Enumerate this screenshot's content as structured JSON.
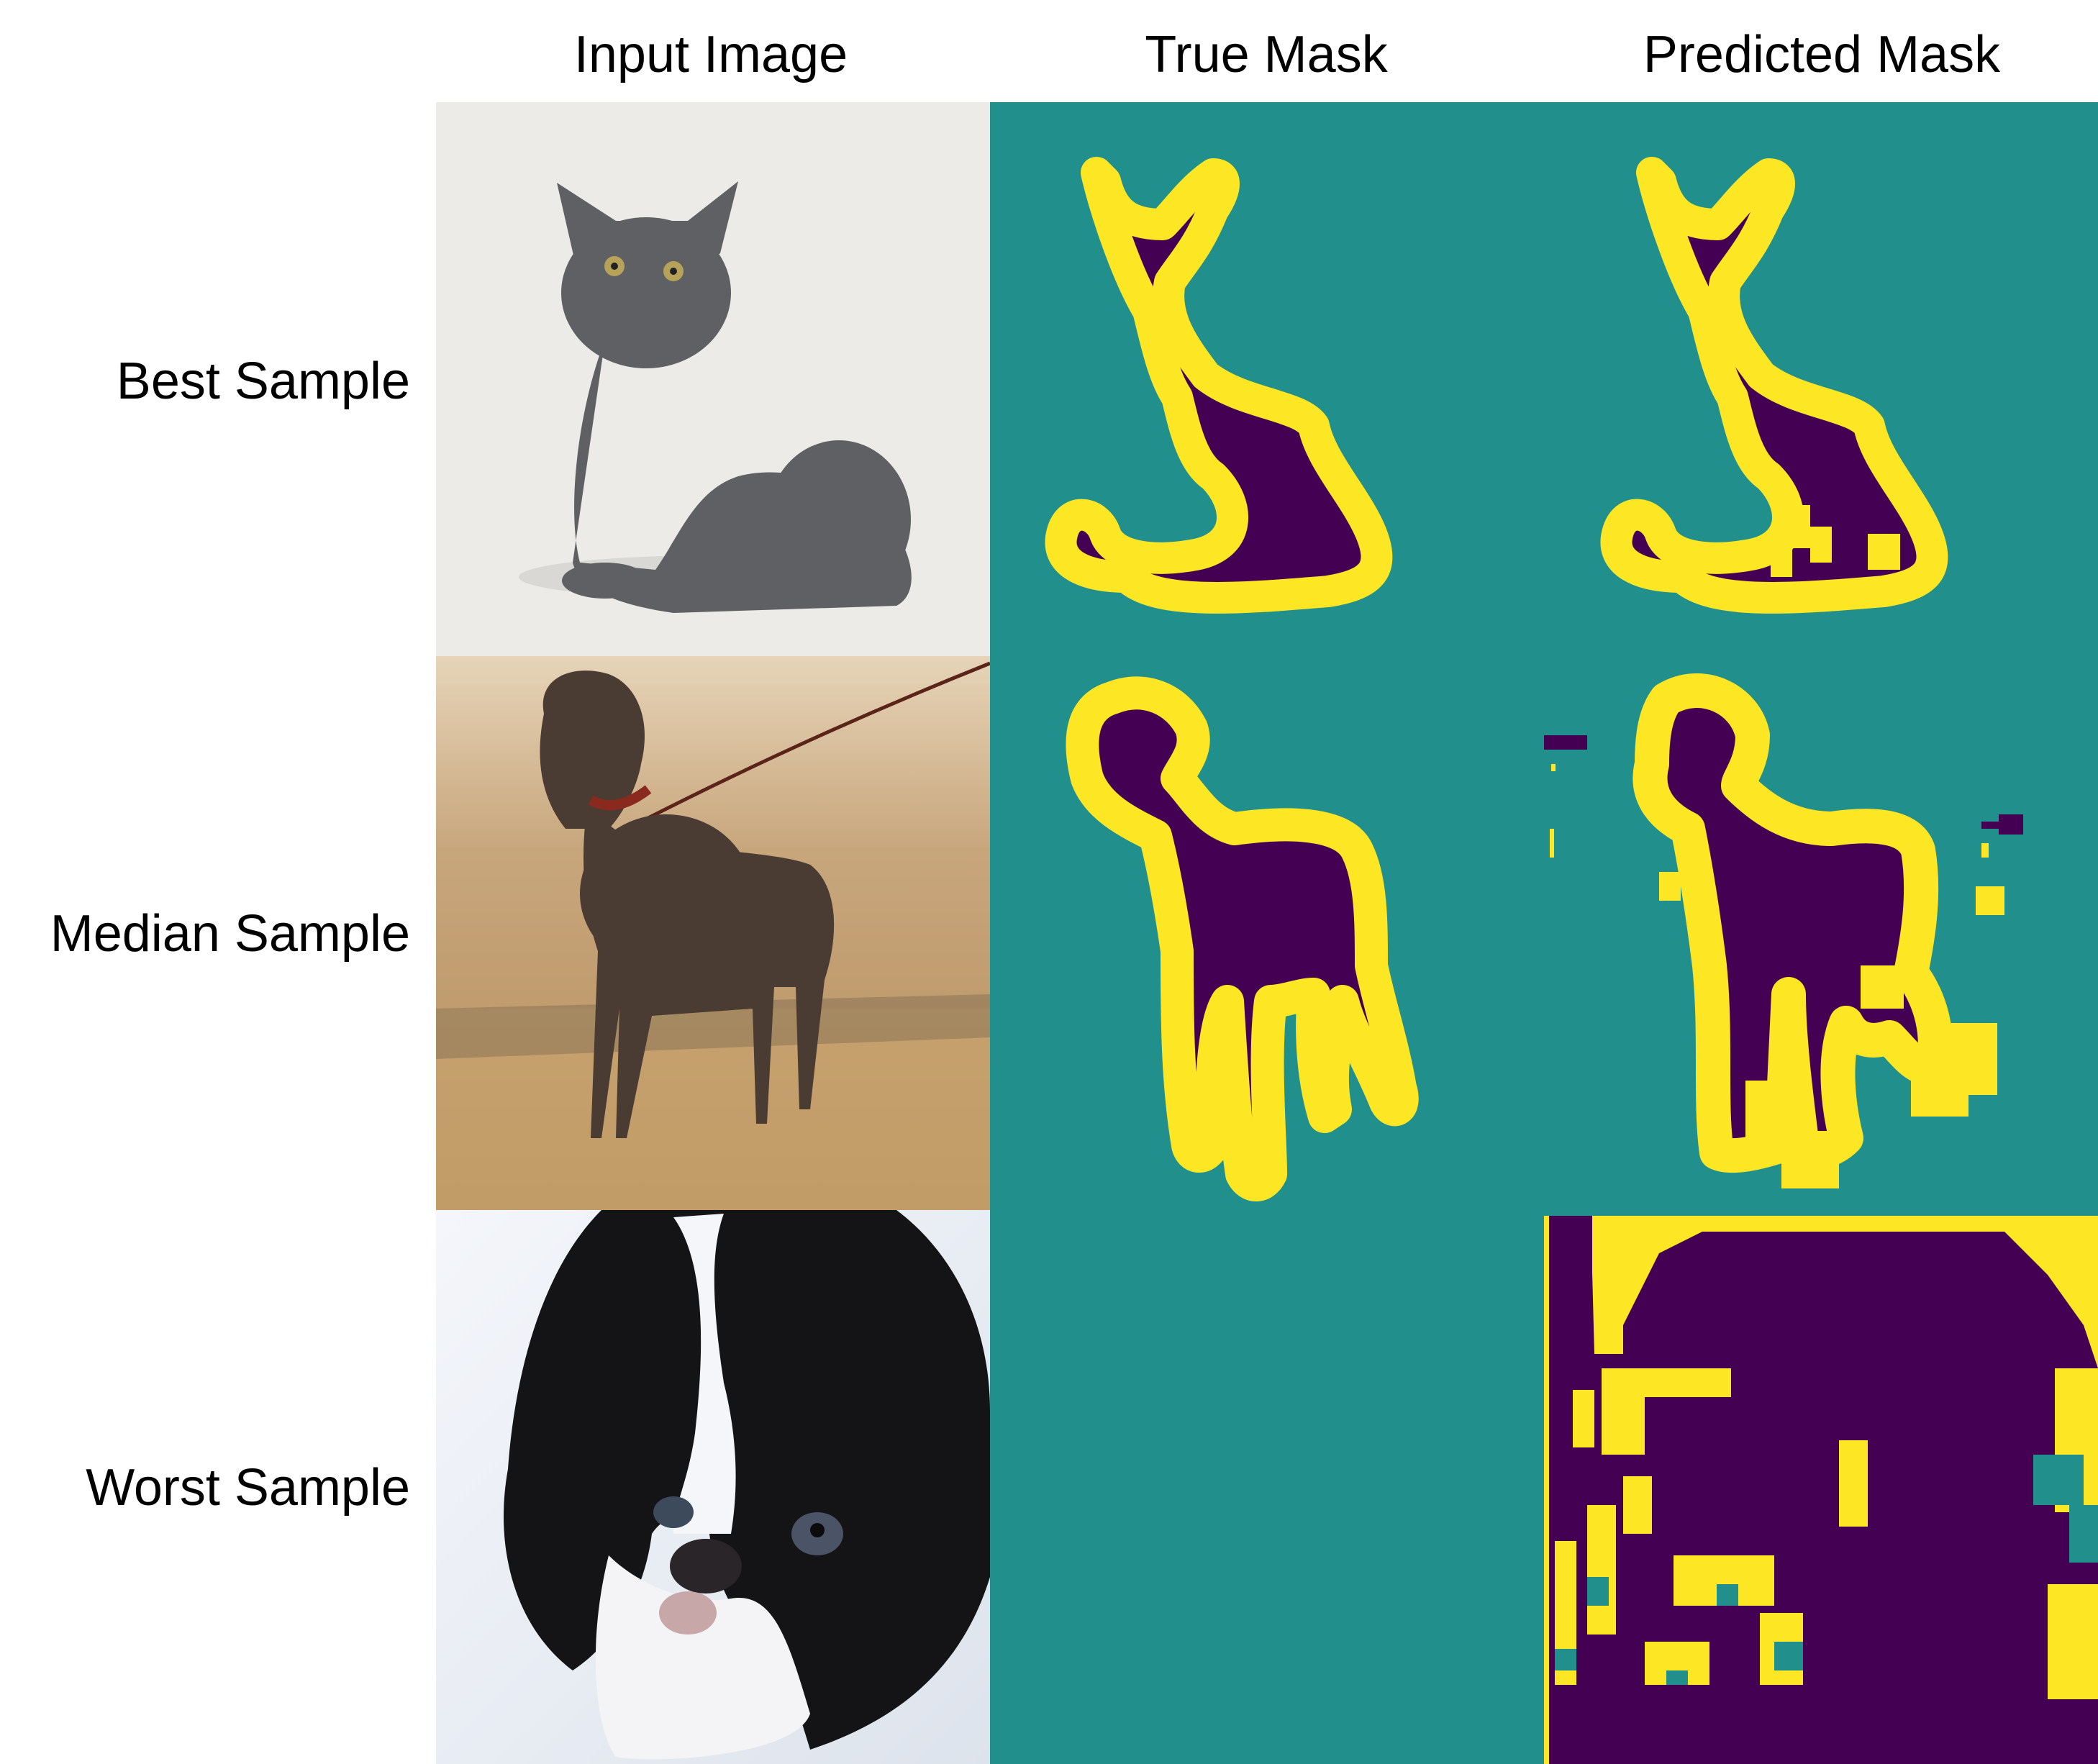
{
  "figure": {
    "columns": [
      {
        "label": "Input Image"
      },
      {
        "label": "True Mask"
      },
      {
        "label": "Predicted Mask"
      }
    ],
    "rows": [
      {
        "label": "Best Sample",
        "subject": "grey kitten"
      },
      {
        "label": "Median Sample",
        "subject": "brindle dog on leash"
      },
      {
        "label": "Worst Sample",
        "subject": "black and white dog face"
      }
    ]
  },
  "colors": {
    "background_class": "#21908d",
    "foreground_class": "#440154",
    "boundary_class": "#fde725"
  }
}
